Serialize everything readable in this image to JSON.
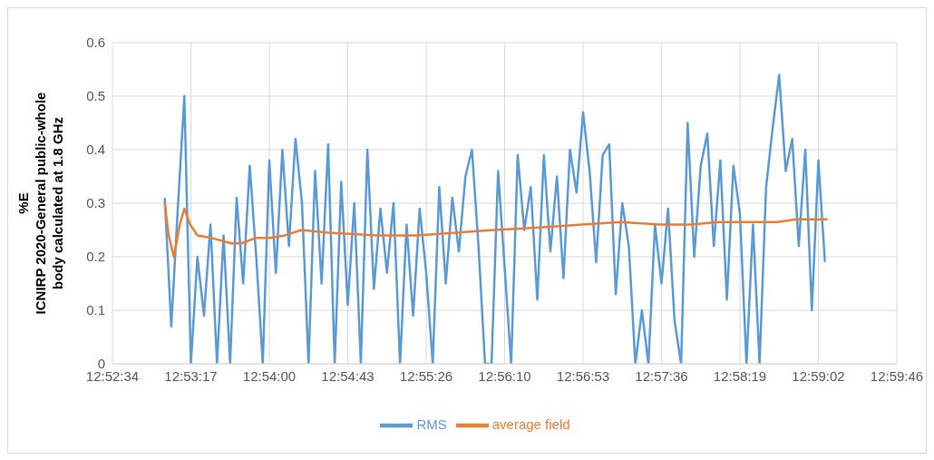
{
  "chart_data": {
    "type": "line",
    "ylabel": "%E\nICNIRP 2020-General public-whole\nbody calculated at 1.8 GHz",
    "xlim": [
      12.876,
      12.996
    ],
    "xticks": [
      {
        "value": 12.876,
        "label": "12:52:34"
      },
      {
        "value": 12.888,
        "label": "12:53:17"
      },
      {
        "value": 12.9,
        "label": "12:54:00"
      },
      {
        "value": 12.912,
        "label": "12:54:43"
      },
      {
        "value": 12.924,
        "label": "12:55:26"
      },
      {
        "value": 12.936,
        "label": "12:56:10"
      },
      {
        "value": 12.948,
        "label": "12:56:53"
      },
      {
        "value": 12.96,
        "label": "12:57:36"
      },
      {
        "value": 12.972,
        "label": "12:58:19"
      },
      {
        "value": 12.984,
        "label": "12:59:02"
      },
      {
        "value": 12.996,
        "label": "12:59:46"
      }
    ],
    "ylim": [
      0,
      0.6
    ],
    "yticks": [
      0,
      0.1,
      0.2,
      0.3,
      0.4,
      0.5,
      0.6
    ],
    "grid": true,
    "legend": "bottom",
    "marker": "none",
    "line_style": "solid",
    "series": [
      {
        "name": "RMS",
        "color": "#5b9bd5",
        "x": [
          12.884,
          12.885,
          12.886,
          12.887,
          12.888,
          12.889,
          12.89,
          12.891,
          12.892,
          12.893,
          12.894,
          12.895,
          12.896,
          12.897,
          12.898,
          12.899,
          12.9,
          12.901,
          12.902,
          12.903,
          12.904,
          12.905,
          12.906,
          12.907,
          12.908,
          12.909,
          12.91,
          12.911,
          12.912,
          12.913,
          12.914,
          12.915,
          12.916,
          12.917,
          12.918,
          12.919,
          12.92,
          12.921,
          12.922,
          12.923,
          12.924,
          12.925,
          12.926,
          12.927,
          12.928,
          12.929,
          12.93,
          12.931,
          12.932,
          12.933,
          12.934,
          12.935,
          12.936,
          12.937,
          12.938,
          12.939,
          12.94,
          12.941,
          12.942,
          12.943,
          12.944,
          12.945,
          12.946,
          12.947,
          12.948,
          12.949,
          12.95,
          12.951,
          12.952,
          12.953,
          12.954,
          12.955,
          12.956,
          12.957,
          12.958,
          12.959,
          12.96,
          12.961,
          12.962,
          12.963,
          12.964,
          12.965,
          12.966,
          12.967,
          12.968,
          12.969,
          12.97,
          12.971,
          12.972,
          12.973,
          12.974,
          12.975,
          12.976,
          12.977,
          12.978,
          12.979,
          12.98,
          12.981,
          12.982,
          12.983,
          12.984,
          12.985
        ],
        "values": [
          0.31,
          0.07,
          0.29,
          0.5,
          0,
          0.2,
          0.09,
          0.26,
          0,
          0.24,
          0,
          0.31,
          0.15,
          0.37,
          0.2,
          0,
          0.38,
          0.17,
          0.4,
          0.22,
          0.42,
          0.3,
          0,
          0.36,
          0.15,
          0.41,
          0,
          0.34,
          0.11,
          0.3,
          0,
          0.4,
          0.14,
          0.29,
          0.17,
          0.3,
          0,
          0.26,
          0.09,
          0.29,
          0.17,
          0,
          0.33,
          0.15,
          0.31,
          0.21,
          0.35,
          0.4,
          0.22,
          0,
          0,
          0.36,
          0.18,
          0,
          0.39,
          0.25,
          0.33,
          0.12,
          0.39,
          0.21,
          0.35,
          0.16,
          0.4,
          0.32,
          0.47,
          0.36,
          0.19,
          0.39,
          0.41,
          0.13,
          0.3,
          0.22,
          0,
          0.1,
          0,
          0.26,
          0.15,
          0.29,
          0.08,
          0,
          0.45,
          0.2,
          0.37,
          0.43,
          0.22,
          0.38,
          0.12,
          0.37,
          0.28,
          0,
          0.26,
          0,
          0.33,
          0.44,
          0.54,
          0.36,
          0.42,
          0.22,
          0.4,
          0.1,
          0.38,
          0.19
        ]
      },
      {
        "name": "average field",
        "color": "#ed7d31",
        "x": [
          12.884,
          12.8846,
          12.8854,
          12.8863,
          12.887,
          12.8879,
          12.889,
          12.8912,
          12.8942,
          12.8957,
          12.8979,
          12.9001,
          12.9024,
          12.9049,
          12.9091,
          12.9165,
          12.9225,
          12.9285,
          12.9344,
          12.9419,
          12.9478,
          12.9538,
          12.9598,
          12.9642,
          12.9687,
          12.9777,
          12.9806,
          12.9854
        ],
        "values": [
          0.3,
          0.24,
          0.2,
          0.26,
          0.29,
          0.26,
          0.24,
          0.235,
          0.225,
          0.225,
          0.235,
          0.235,
          0.24,
          0.25,
          0.245,
          0.24,
          0.24,
          0.245,
          0.25,
          0.255,
          0.26,
          0.265,
          0.26,
          0.26,
          0.265,
          0.265,
          0.27,
          0.27
        ]
      }
    ]
  }
}
